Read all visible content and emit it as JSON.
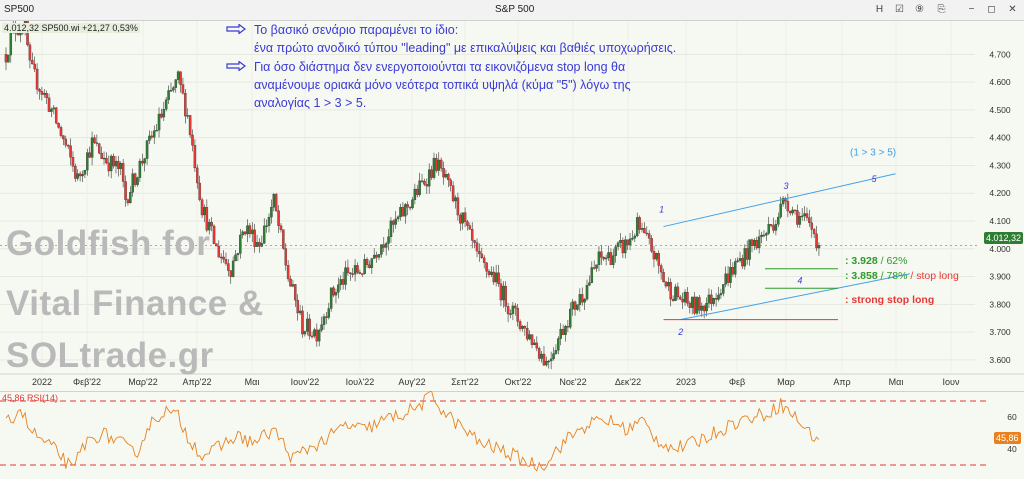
{
  "toolbar": {
    "symbol": "SP500",
    "title": "S&P 500",
    "buttons": [
      "H",
      "☑",
      "⑨",
      "⎘",
      "−",
      "◻",
      "✕"
    ]
  },
  "legend": {
    "price": "4.012,32 SP500.wi +21,27 0,53%",
    "rsi": "45,86 RSI(14)"
  },
  "annotations": {
    "line1": "Το βασικό σενάριο παραμένει το ίδιο:",
    "line2": "ένα πρώτο ανοδικό τύπου \"leading\" με επικαλύψεις και βαθιές υποχωρήσεις.",
    "line3": "Για όσο διάστημα δεν ενεργοποιούνται τα εικονιζόμενα stop long θα",
    "line4": "αναμένουμε οριακά μόνο νεότερα τοπικά υψηλά (κύμα \"5\") λόγω της",
    "line5": "αναλογίας 1 > 3 > 5."
  },
  "watermark": [
    "Goldfish for",
    "Vital Finance &",
    "SOLtrade.gr"
  ],
  "levels": {
    "l1_value": ": 3.928",
    "l1_pct": " / 62%",
    "l2_value": ": 3.858",
    "l2_pct": " / 78% ",
    "l2_stop": "/ stop long",
    "l3": ": strong stop long"
  },
  "price_label": "4.012,32",
  "rsi_label": "45,86",
  "colors": {
    "up": "#2e7d32",
    "down": "#e53935",
    "channel": "#3fa0e8",
    "rsi": "#e8821e",
    "text_blue": "#3a3ad6",
    "stop": "#e53935",
    "green_level": "#2e9a2e"
  },
  "chart_data": [
    {
      "type": "candlestick",
      "title": "S&P 500",
      "x_ticks": [
        "2022",
        "Φεβ'22",
        "Μαρ'22",
        "Απρ'22",
        "Μαι",
        "Ιουν'22",
        "Ιουλ'22",
        "Αυγ'22",
        "Σεπ'22",
        "Οκτ'22",
        "Νοε'22",
        "Δεκ'22",
        "2023",
        "Φεβ",
        "Μαρ",
        "Απρ",
        "Μαι",
        "Ιουν"
      ],
      "y_ticks": [
        3600,
        3700,
        3800,
        3900,
        4000,
        4100,
        4200,
        4300,
        4400,
        4500,
        4600,
        4700
      ],
      "y_tick_labels": [
        "3.600",
        "3.700",
        "3.800",
        "3.900",
        "4.000",
        "4.100",
        "4.200",
        "4.300",
        "4.400",
        "4.500",
        "4.600",
        "4.700"
      ],
      "ylim": [
        3560,
        4820
      ],
      "anchors": [
        [
          0,
          4700
        ],
        [
          3,
          4790
        ],
        [
          8,
          4800
        ],
        [
          10,
          4650
        ],
        [
          18,
          4520
        ],
        [
          24,
          4390
        ],
        [
          30,
          4250
        ],
        [
          36,
          4380
        ],
        [
          42,
          4320
        ],
        [
          48,
          4280
        ],
        [
          50,
          4180
        ],
        [
          56,
          4300
        ],
        [
          62,
          4420
        ],
        [
          68,
          4540
        ],
        [
          72,
          4610
        ],
        [
          76,
          4480
        ],
        [
          82,
          4150
        ],
        [
          88,
          4000
        ],
        [
          94,
          3930
        ],
        [
          100,
          4080
        ],
        [
          106,
          4020
        ],
        [
          112,
          4170
        ],
        [
          118,
          3900
        ],
        [
          124,
          3720
        ],
        [
          130,
          3700
        ],
        [
          136,
          3830
        ],
        [
          142,
          3900
        ],
        [
          150,
          3930
        ],
        [
          156,
          4010
        ],
        [
          162,
          4080
        ],
        [
          170,
          4180
        ],
        [
          176,
          4260
        ],
        [
          180,
          4310
        ],
        [
          186,
          4200
        ],
        [
          192,
          4080
        ],
        [
          198,
          3950
        ],
        [
          204,
          3900
        ],
        [
          210,
          3800
        ],
        [
          216,
          3720
        ],
        [
          222,
          3650
        ],
        [
          226,
          3590
        ],
        [
          230,
          3660
        ],
        [
          236,
          3770
        ],
        [
          242,
          3850
        ],
        [
          248,
          3960
        ],
        [
          254,
          3980
        ],
        [
          260,
          4020
        ],
        [
          264,
          4080
        ],
        [
          270,
          4000
        ],
        [
          276,
          3870
        ],
        [
          282,
          3820
        ],
        [
          288,
          3790
        ],
        [
          294,
          3810
        ],
        [
          300,
          3880
        ],
        [
          306,
          3950
        ],
        [
          312,
          4010
        ],
        [
          318,
          4060
        ],
        [
          322,
          4110
        ],
        [
          326,
          4180
        ],
        [
          330,
          4130
        ],
        [
          334,
          4100
        ],
        [
          338,
          4060
        ],
        [
          340,
          4012
        ]
      ],
      "wave_labels": [
        "1",
        "2",
        "3",
        "4",
        "5",
        "(1 > 3 > 5)"
      ],
      "channel_upper": {
        "from": {
          "i": 275,
          "v": 4080
        },
        "to": {
          "i": 372,
          "v": 4270
        }
      },
      "channel_lower": {
        "from": {
          "i": 282,
          "v": 3745
        },
        "to": {
          "i": 378,
          "v": 3910
        }
      },
      "levels": [
        {
          "label": ": 3.928 / 62%",
          "value": 3928
        },
        {
          "label": ": 3.858 / 78% / stop long",
          "value": 3858
        },
        {
          "label": ": strong stop long",
          "value": 3745
        }
      ],
      "last_value": 4012.32
    },
    {
      "type": "line",
      "title": "RSI(14)",
      "series": [
        {
          "name": "RSI(14)",
          "last": 45.86
        }
      ],
      "y_ticks": [
        40,
        60
      ],
      "ylim": [
        25,
        75
      ],
      "overbought": 70,
      "oversold": 30,
      "anchors": [
        [
          0,
          55
        ],
        [
          6,
          66
        ],
        [
          10,
          52
        ],
        [
          16,
          44
        ],
        [
          22,
          38
        ],
        [
          28,
          26
        ],
        [
          32,
          42
        ],
        [
          40,
          50
        ],
        [
          48,
          44
        ],
        [
          54,
          36
        ],
        [
          60,
          55
        ],
        [
          66,
          64
        ],
        [
          72,
          60
        ],
        [
          76,
          48
        ],
        [
          82,
          36
        ],
        [
          88,
          40
        ],
        [
          96,
          48
        ],
        [
          104,
          44
        ],
        [
          112,
          52
        ],
        [
          120,
          34
        ],
        [
          126,
          40
        ],
        [
          134,
          46
        ],
        [
          142,
          55
        ],
        [
          150,
          52
        ],
        [
          158,
          58
        ],
        [
          166,
          62
        ],
        [
          172,
          66
        ],
        [
          178,
          73
        ],
        [
          184,
          62
        ],
        [
          190,
          54
        ],
        [
          198,
          44
        ],
        [
          206,
          40
        ],
        [
          212,
          36
        ],
        [
          218,
          32
        ],
        [
          224,
          29
        ],
        [
          228,
          36
        ],
        [
          236,
          48
        ],
        [
          244,
          56
        ],
        [
          252,
          58
        ],
        [
          260,
          52
        ],
        [
          266,
          58
        ],
        [
          272,
          46
        ],
        [
          280,
          40
        ],
        [
          288,
          44
        ],
        [
          296,
          50
        ],
        [
          304,
          56
        ],
        [
          312,
          60
        ],
        [
          318,
          62
        ],
        [
          324,
          68
        ],
        [
          330,
          60
        ],
        [
          336,
          50
        ],
        [
          340,
          45.86
        ]
      ]
    }
  ]
}
